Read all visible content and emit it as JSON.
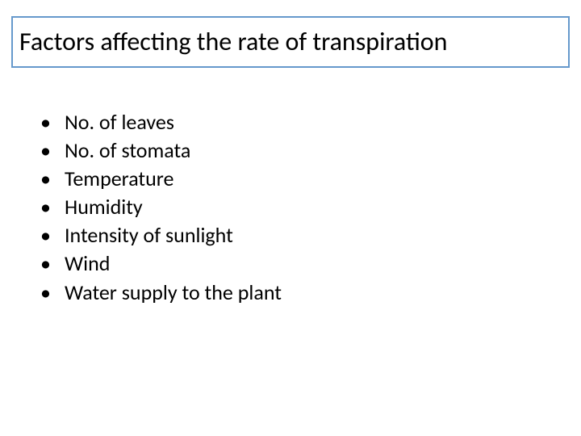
{
  "slide": {
    "background_color": "#ffffff",
    "title": {
      "text": "Factors affecting the rate of transpiration",
      "border_color": "#6699cc",
      "border_width": 2,
      "font_size": 32,
      "font_weight": 400,
      "text_color": "#000000",
      "box_background": "#ffffff"
    },
    "bullets": {
      "marker": "•",
      "marker_color": "#000000",
      "text_color": "#000000",
      "font_size": 26,
      "line_height": 1.35,
      "items": [
        "No. of leaves",
        "No. of stomata",
        "Temperature",
        "Humidity",
        "Intensity of sunlight",
        "Wind",
        "Water supply to the plant"
      ]
    }
  }
}
